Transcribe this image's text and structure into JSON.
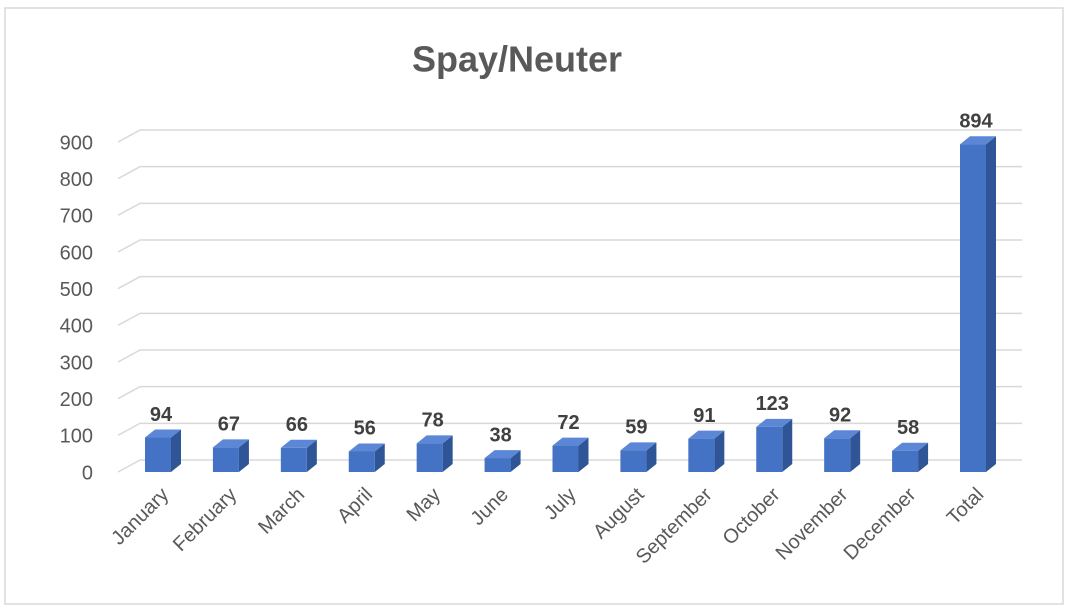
{
  "chart_data": {
    "type": "bar",
    "title": "Spay/Neuter",
    "categories": [
      "January",
      "February",
      "March",
      "April",
      "May",
      "June",
      "July",
      "August",
      "September",
      "October",
      "November",
      "December",
      "Total"
    ],
    "values": [
      94,
      67,
      66,
      56,
      78,
      38,
      72,
      59,
      91,
      123,
      92,
      58,
      894
    ],
    "color": "#4472c4",
    "ylim": [
      0,
      900
    ],
    "yticks": [
      0,
      100,
      200,
      300,
      400,
      500,
      600,
      700,
      800,
      900
    ],
    "grid": true
  }
}
